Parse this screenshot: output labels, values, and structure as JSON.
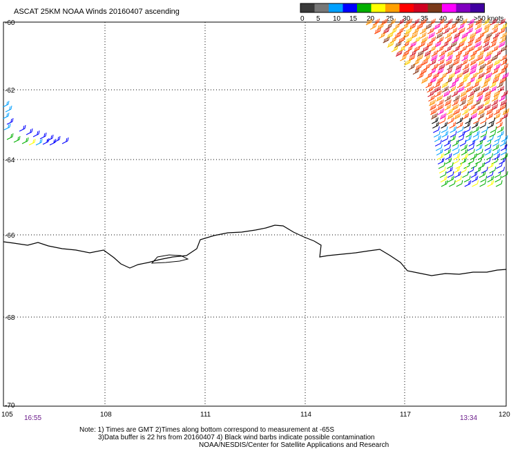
{
  "title": "ASCAT 25KM NOAA Winds 20160407 ascending",
  "legend": {
    "labels": [
      "0",
      "5",
      "10",
      "15",
      "20",
      "25",
      "30",
      "35",
      "40",
      "45",
      ">50 knots"
    ],
    "colors": [
      "#3a3a3a",
      "#777777",
      "#00a0ff",
      "#0000ff",
      "#00b000",
      "#ffff00",
      "#ffa000",
      "#ff0000",
      "#d00020",
      "#7a3a1a",
      "#ff00ff",
      "#8000c0",
      "#4000a0"
    ]
  },
  "lat_labels": [
    "-60",
    "-62",
    "-64",
    "-66",
    "-68",
    "-70"
  ],
  "lon_labels": [
    "105",
    "108",
    "111",
    "114",
    "117",
    "120"
  ],
  "time_left": "16:55",
  "time_right": "13:34",
  "notes": {
    "line1": "Note: 1) Times are GMT 2)Times along bottom correspond to measurement at -65S",
    "line2": "3)Data buffer is 22 hrs from 20160407 4) Black wind barbs indicate possible contamination",
    "line3": "NOAA/NESDIS/Center for Satellite Applications and Research"
  }
}
